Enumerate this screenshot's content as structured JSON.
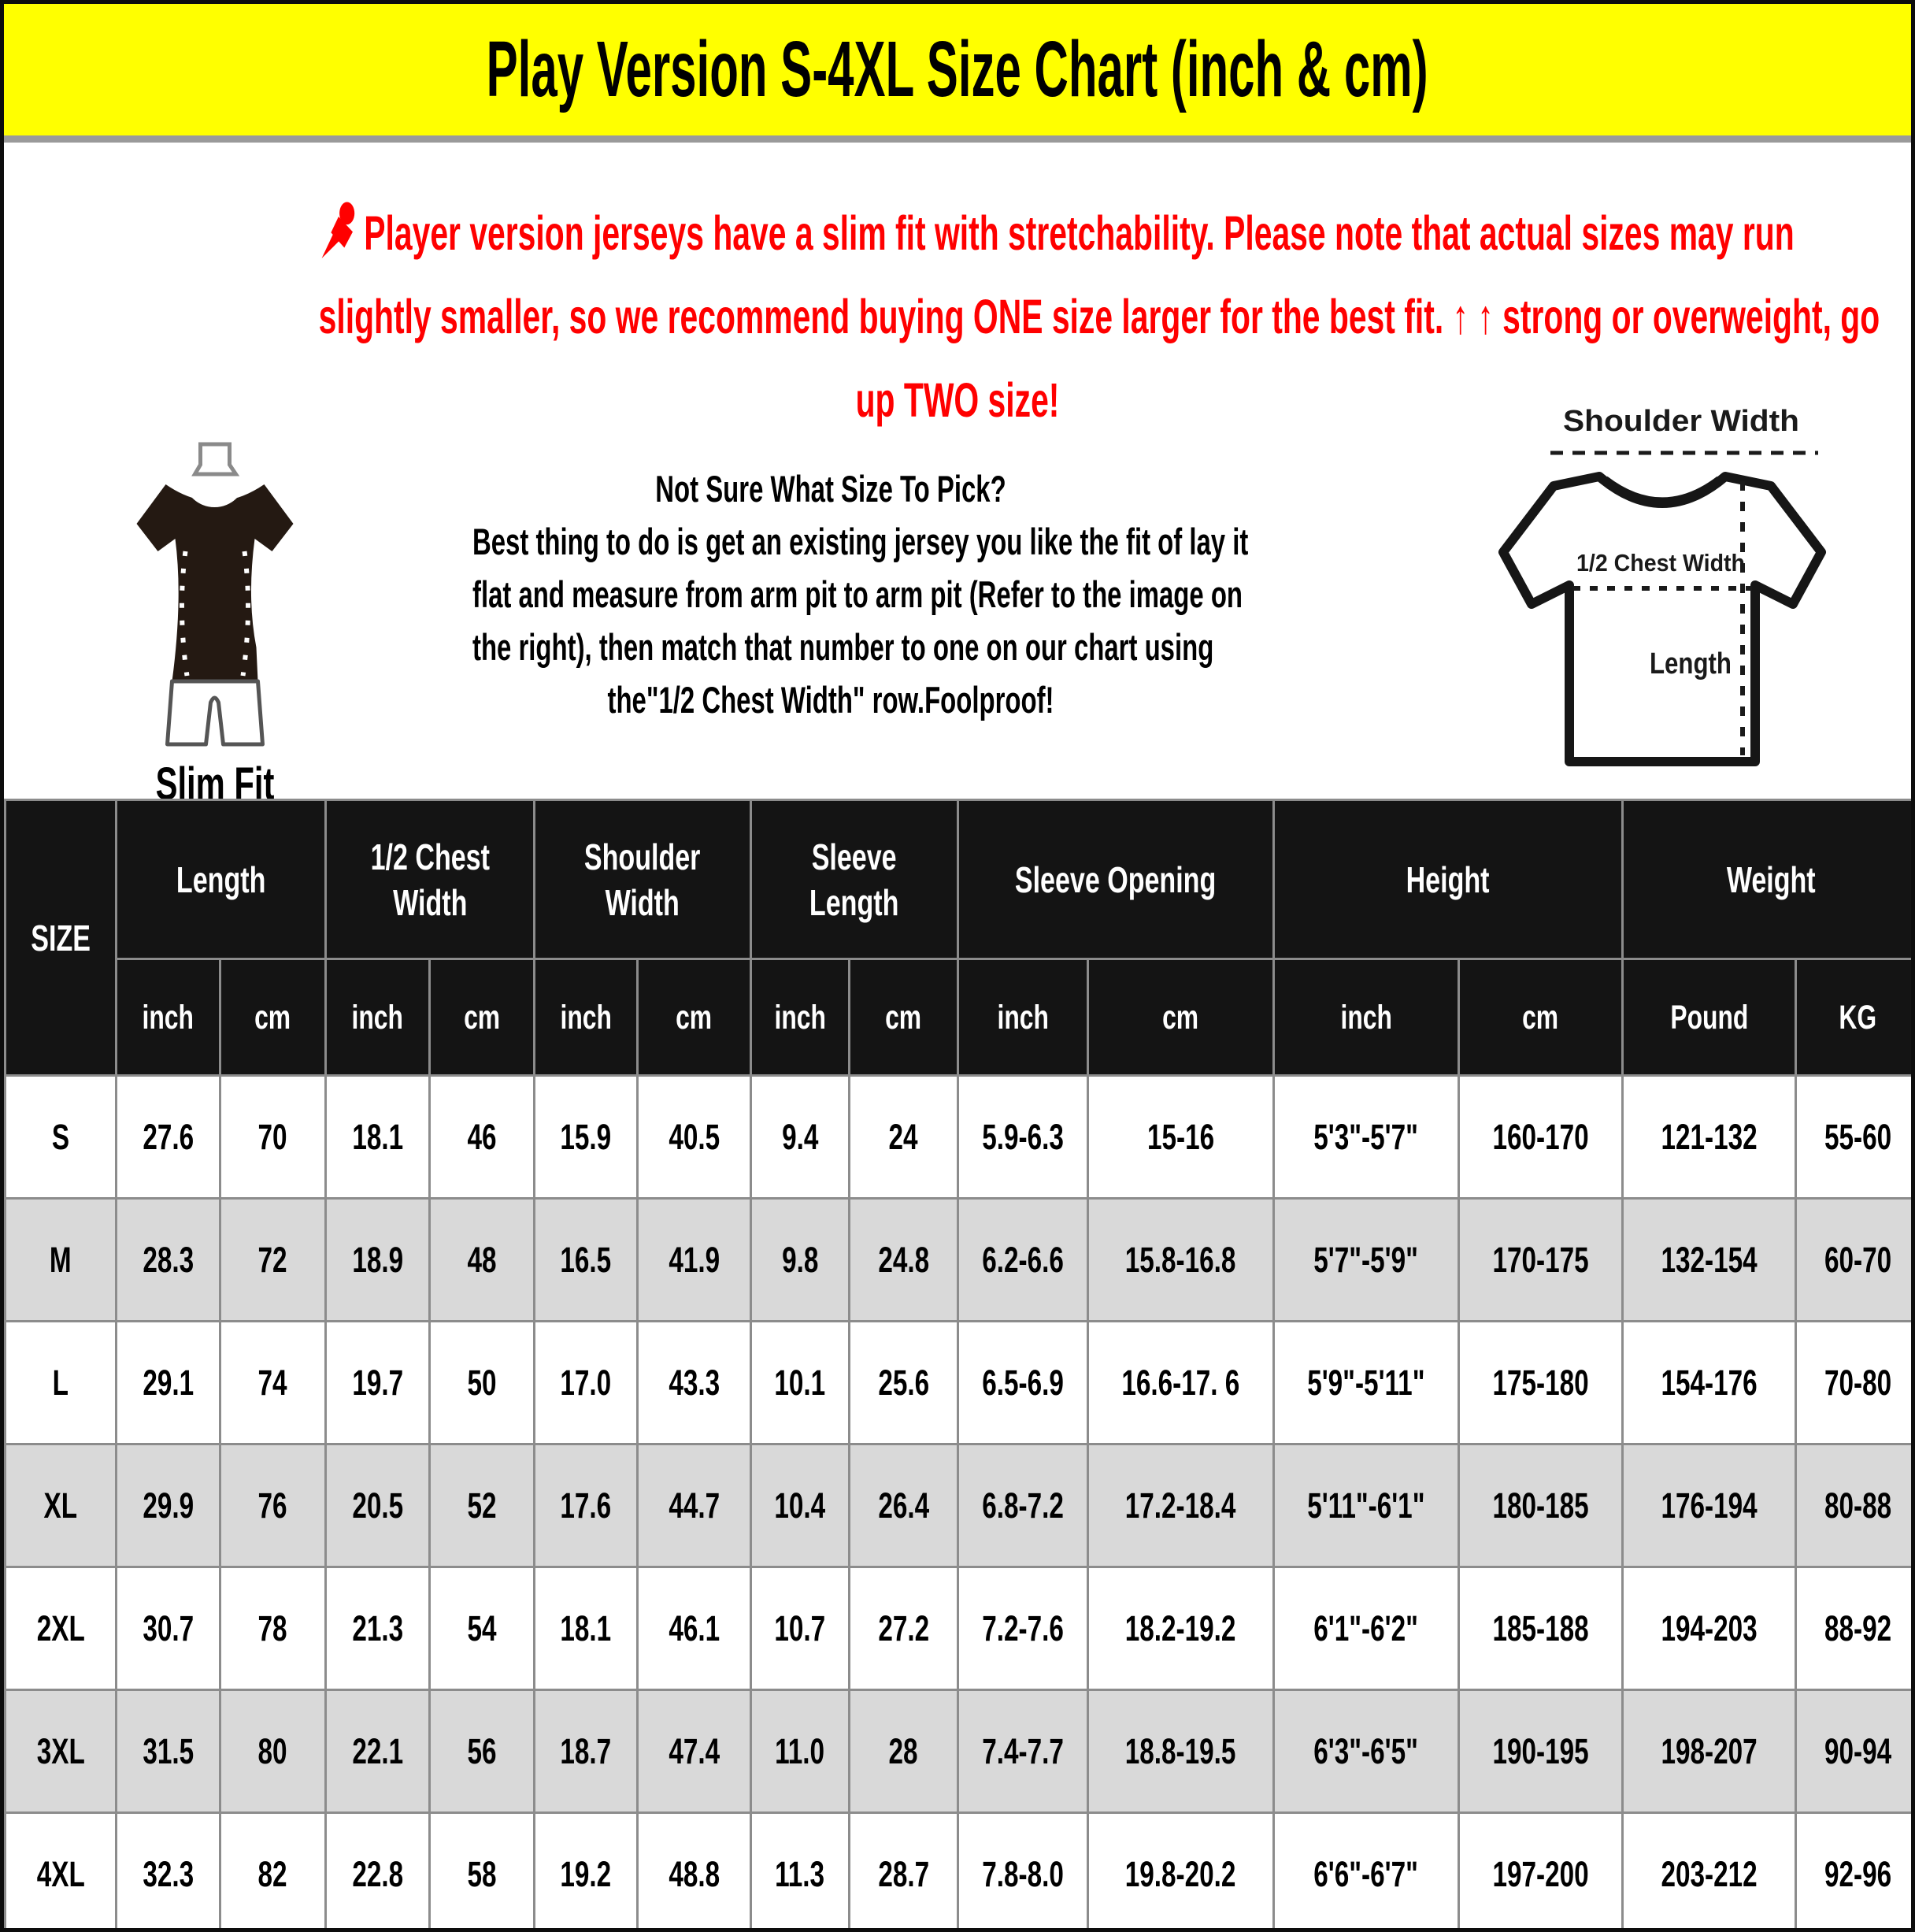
{
  "title": "Play Version S-4XL Size Chart (inch & cm)",
  "colors": {
    "banner_bg": "#FFFF00",
    "notice_text": "#FF0000",
    "header_bg": "#141414",
    "row_alt_bg": "#D9D9D9",
    "grid_line": "#8C8C8C",
    "tee_fill": "#241912"
  },
  "notice": {
    "icon": "pushpin-icon",
    "lines": [
      "Player version jerseys have a slim fit with stretchability. Please note that actual sizes may run",
      "slightly smaller, so we recommend buying ONE size larger for the best fit. ↑ ↑ strong or overweight, go",
      "up TWO size!"
    ]
  },
  "fit_figure": {
    "icon": "slim-fit-figure",
    "label": "Slim Fit"
  },
  "instructions": {
    "lines": [
      "Not Sure What Size To Pick?",
      "Best thing to do is get an existing jersey you like the fit of lay it",
      "flat and measure from arm pit to arm pit (Refer to the image on",
      "the right), then match that number to one on our chart using",
      "the\"1/2 Chest Width\" row.Foolproof!"
    ]
  },
  "diagram": {
    "icon": "tshirt-measure-diagram",
    "shoulder_label": "Shoulder Width",
    "chest_label": "1/2 Chest Width",
    "length_label": "Length"
  },
  "table": {
    "size_header": "SIZE",
    "groups": [
      {
        "label": "Length",
        "units": [
          "inch",
          "cm"
        ]
      },
      {
        "label": "1/2 Chest\nWidth",
        "units": [
          "inch",
          "cm"
        ]
      },
      {
        "label": "Shoulder\nWidth",
        "units": [
          "inch",
          "cm"
        ]
      },
      {
        "label": "Sleeve\nLength",
        "units": [
          "inch",
          "cm"
        ]
      },
      {
        "label": "Sleeve Opening",
        "units": [
          "inch",
          "cm"
        ]
      },
      {
        "label": "Height",
        "units": [
          "inch",
          "cm"
        ]
      },
      {
        "label": "Weight",
        "units": [
          "Pound",
          "KG"
        ]
      }
    ],
    "rows": [
      {
        "size": "S",
        "cells": [
          "27.6",
          "70",
          "18.1",
          "46",
          "15.9",
          "40.5",
          "9.4",
          "24",
          "5.9-6.3",
          "15-16",
          "5'3\"-5'7\"",
          "160-170",
          "121-132",
          "55-60"
        ]
      },
      {
        "size": "M",
        "cells": [
          "28.3",
          "72",
          "18.9",
          "48",
          "16.5",
          "41.9",
          "9.8",
          "24.8",
          "6.2-6.6",
          "15.8-16.8",
          "5'7\"-5'9\"",
          "170-175",
          "132-154",
          "60-70"
        ]
      },
      {
        "size": "L",
        "cells": [
          "29.1",
          "74",
          "19.7",
          "50",
          "17.0",
          "43.3",
          "10.1",
          "25.6",
          "6.5-6.9",
          "16.6-17. 6",
          "5'9\"-5'11\"",
          "175-180",
          "154-176",
          "70-80"
        ]
      },
      {
        "size": "XL",
        "cells": [
          "29.9",
          "76",
          "20.5",
          "52",
          "17.6",
          "44.7",
          "10.4",
          "26.4",
          "6.8-7.2",
          "17.2-18.4",
          "5'11\"-6'1\"",
          "180-185",
          "176-194",
          "80-88"
        ]
      },
      {
        "size": "2XL",
        "cells": [
          "30.7",
          "78",
          "21.3",
          "54",
          "18.1",
          "46.1",
          "10.7",
          "27.2",
          "7.2-7.6",
          "18.2-19.2",
          "6'1\"-6'2\"",
          "185-188",
          "194-203",
          "88-92"
        ]
      },
      {
        "size": "3XL",
        "cells": [
          "31.5",
          "80",
          "22.1",
          "56",
          "18.7",
          "47.4",
          "11.0",
          "28",
          "7.4-7.7",
          "18.8-19.5",
          "6'3\"-6'5\"",
          "190-195",
          "198-207",
          "90-94"
        ]
      },
      {
        "size": "4XL",
        "cells": [
          "32.3",
          "82",
          "22.8",
          "58",
          "19.2",
          "48.8",
          "11.3",
          "28.7",
          "7.8-8.0",
          "19.8-20.2",
          "6'6\"-6'7\"",
          "197-200",
          "203-212",
          "92-96"
        ]
      }
    ]
  }
}
